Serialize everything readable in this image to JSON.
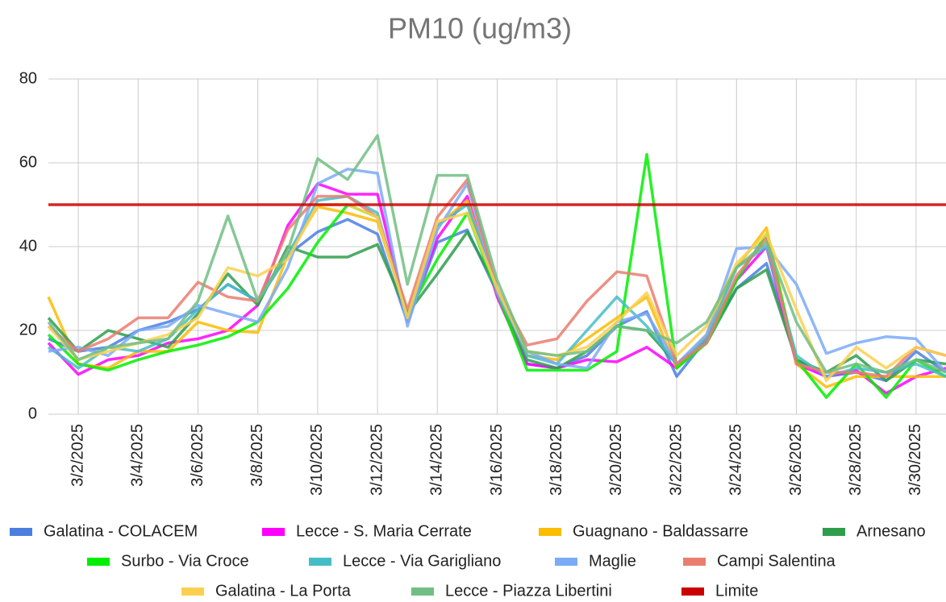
{
  "chart_data": {
    "type": "line",
    "title": "PM10 (ug/m3)",
    "categories": [
      null,
      "3/2/2025",
      null,
      "3/4/2025",
      null,
      "3/6/2025",
      null,
      "3/8/2025",
      null,
      "3/10/2025",
      null,
      "3/12/2025",
      null,
      "3/14/2025",
      null,
      "3/16/2025",
      null,
      "3/18/2025",
      null,
      "3/20/2025",
      null,
      "3/22/2025",
      null,
      "3/24/2025",
      null,
      "3/26/2025",
      null,
      "3/28/2025",
      null,
      "3/30/2025",
      null
    ],
    "ylim": [
      0,
      80
    ],
    "yticks": [
      0,
      20,
      40,
      60,
      80
    ],
    "grid": true,
    "series": [
      {
        "name": "Galatina - COLACEM",
        "color": "#4a7fe0",
        "values": [
          18,
          15,
          16,
          20,
          22,
          25,
          31,
          27,
          38,
          43.5,
          46.5,
          43,
          22,
          41,
          44,
          29,
          12,
          11,
          14,
          21,
          24.5,
          9,
          18,
          30,
          36,
          13,
          9,
          10,
          8,
          15,
          10
        ]
      },
      {
        "name": "Lecce - S. Maria Cerrate",
        "color": "#ff00ff",
        "values": [
          17,
          9.5,
          13,
          14,
          17,
          18,
          20,
          26,
          45,
          55,
          52.5,
          52.5,
          23,
          42,
          52,
          28,
          12,
          11,
          13,
          12.5,
          16,
          11,
          18,
          32,
          40,
          12,
          9,
          10.5,
          5,
          9,
          11
        ]
      },
      {
        "name": "Guagnano - Baldassarre",
        "color": "#fbbc04",
        "values": [
          28,
          12,
          11,
          15,
          15,
          22,
          20,
          19.5,
          38,
          49.5,
          48,
          46,
          24,
          45,
          51,
          29,
          14,
          13,
          18,
          23,
          28,
          11,
          19,
          35,
          44.5,
          12,
          6.5,
          9,
          9,
          9,
          9
        ]
      },
      {
        "name": "Arnesano",
        "color": "#2e9e4c",
        "values": [
          23,
          15,
          20,
          18,
          16,
          24,
          33.5,
          26,
          40,
          37.5,
          37.5,
          40.5,
          24,
          33.5,
          43.5,
          30,
          13,
          11,
          15,
          21,
          20,
          12,
          17,
          30,
          34.5,
          13,
          10,
          14,
          8,
          13,
          12
        ]
      },
      {
        "name": "Surbo - Via Croce",
        "color": "#00ee00",
        "values": [
          19,
          12,
          10.5,
          13,
          15,
          16.5,
          18.5,
          22,
          30,
          41,
          50,
          47,
          24,
          37,
          48,
          29,
          10.5,
          10.5,
          10.5,
          15,
          62,
          11,
          17,
          32,
          43,
          13,
          4,
          12,
          4,
          13,
          9
        ]
      },
      {
        "name": "Lecce - Via Garigliano",
        "color": "#46bdc6",
        "values": [
          16,
          11,
          16,
          15,
          18,
          25,
          31,
          27,
          38,
          51,
          52,
          48,
          23,
          45,
          50,
          30,
          14,
          12,
          20,
          28,
          21,
          12,
          18,
          35,
          40,
          14,
          9,
          11,
          10,
          12,
          9
        ]
      },
      {
        "name": "Maglie",
        "color": "#7baaf7",
        "values": [
          15,
          16,
          14,
          20,
          21,
          26,
          24,
          22,
          35,
          55,
          58.5,
          57.5,
          21,
          44,
          55,
          29,
          15,
          12,
          11,
          22,
          24,
          12,
          19,
          39.5,
          40,
          31,
          14.5,
          17,
          18.5,
          18,
          10
        ]
      },
      {
        "name": "Campi Salentina",
        "color": "#ea7d70",
        "values": [
          21,
          15,
          18,
          23,
          23,
          31.5,
          28,
          27,
          44,
          52,
          52,
          47,
          25,
          47,
          56,
          30,
          16.5,
          18,
          27,
          34,
          33,
          12,
          17,
          33,
          42,
          12,
          10,
          10,
          9,
          16,
          14
        ]
      },
      {
        "name": "Galatina - La Porta",
        "color": "#fcd04f",
        "values": [
          21,
          13,
          15,
          17,
          19,
          23,
          35,
          33,
          37,
          50,
          50,
          47,
          23,
          46,
          48,
          30,
          15,
          14,
          16,
          22,
          29,
          14,
          21,
          36,
          43,
          25,
          8,
          16,
          11,
          16,
          14
        ]
      },
      {
        "name": "Lecce - Piazza Libertini",
        "color": "#71be84",
        "values": [
          22,
          13,
          16,
          17,
          18,
          27,
          47.3,
          27,
          39,
          61,
          56,
          66.5,
          31,
          57,
          57,
          32,
          15,
          14,
          15,
          21,
          20,
          17,
          22,
          35,
          41,
          22,
          10,
          12,
          10,
          13,
          10
        ]
      },
      {
        "name": "Limite",
        "color": "#cc0000",
        "values": [
          50,
          50,
          50,
          50,
          50,
          50,
          50,
          50,
          50,
          50,
          50,
          50,
          50,
          50,
          50,
          50,
          50,
          50,
          50,
          50,
          50,
          50,
          50,
          50,
          50,
          50,
          50,
          50,
          50,
          50,
          50
        ]
      }
    ]
  }
}
